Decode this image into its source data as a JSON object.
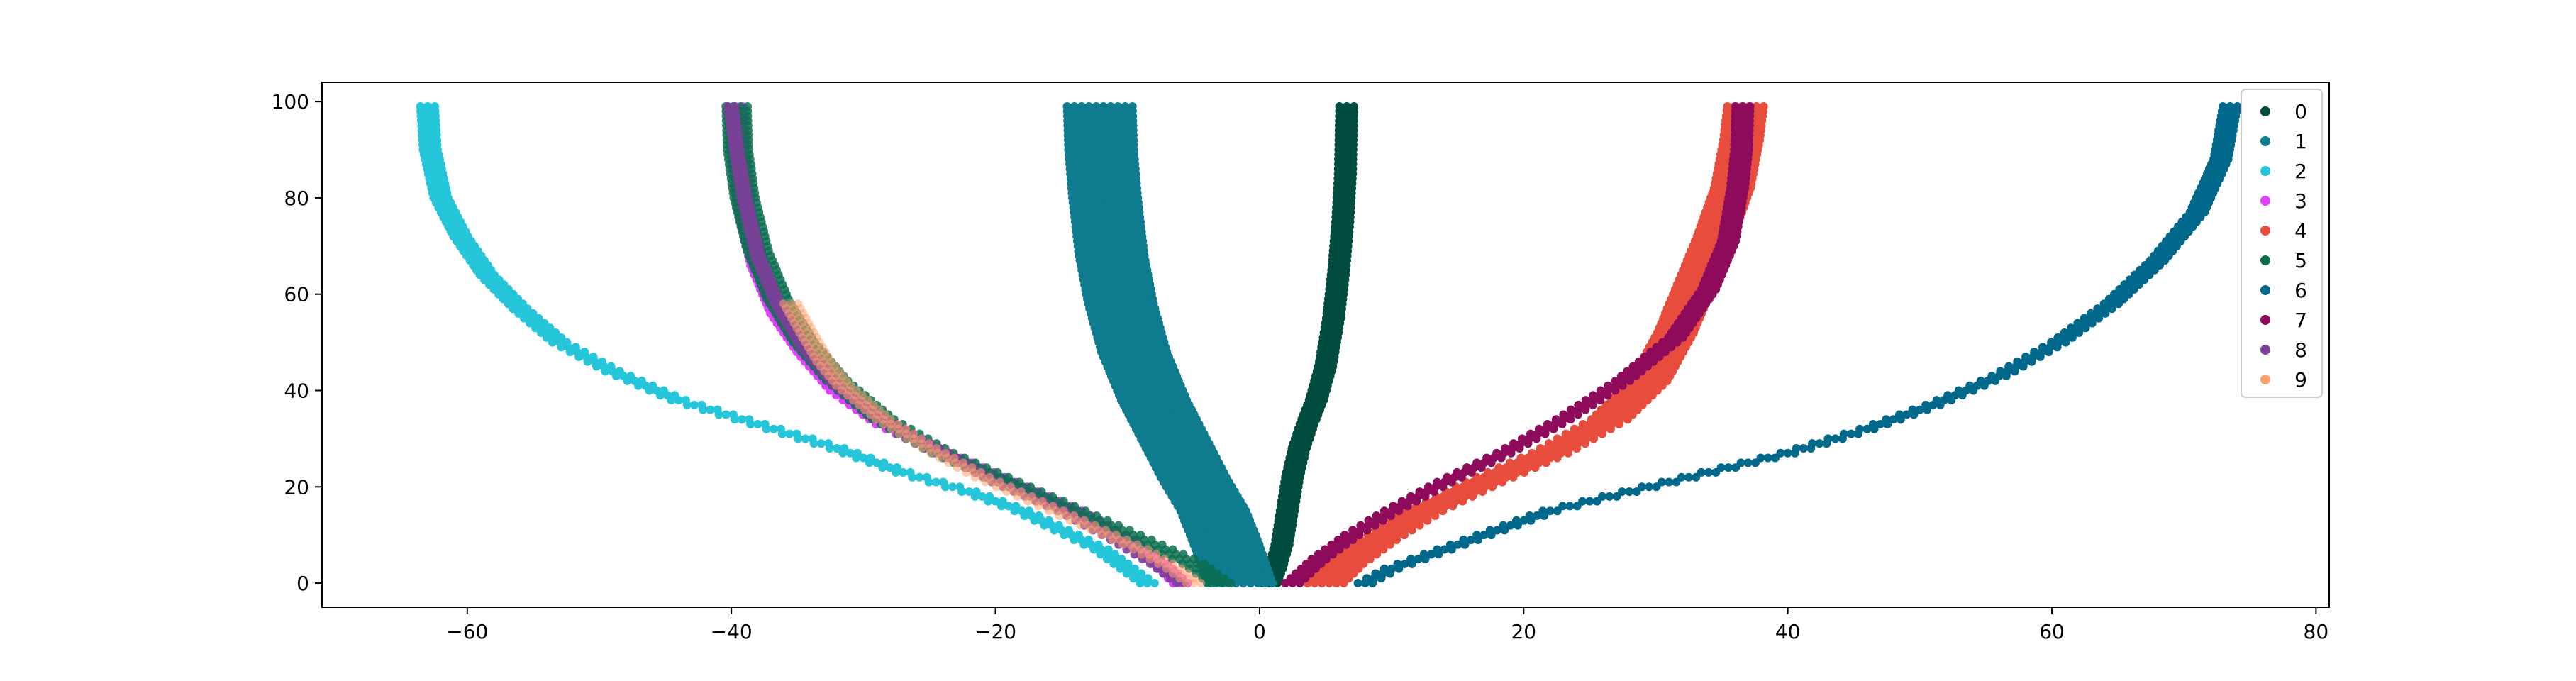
{
  "chart_data": {
    "type": "scatter",
    "title": "",
    "xlabel": "",
    "ylabel": "",
    "xlim": [
      -71,
      81
    ],
    "ylim": [
      -5,
      104
    ],
    "x_ticks": [
      -60,
      -40,
      -20,
      0,
      20,
      40,
      60,
      80
    ],
    "x_tick_labels": [
      "−60",
      "−40",
      "−20",
      "0",
      "20",
      "40",
      "60",
      "80"
    ],
    "y_ticks": [
      0,
      20,
      40,
      60,
      80,
      100
    ],
    "y_tick_labels": [
      "0",
      "20",
      "40",
      "60",
      "80",
      "100"
    ],
    "grid": false,
    "legend_position": "top-right",
    "series": [
      {
        "name": "0",
        "color": "#004d40",
        "alpha": 1.0,
        "band": 3,
        "points": [
          [
            0.8,
            0
          ],
          [
            1.2,
            3
          ],
          [
            1.7,
            8
          ],
          [
            2.1,
            15
          ],
          [
            2.5,
            22
          ],
          [
            3.0,
            28
          ],
          [
            3.6,
            33
          ],
          [
            4.3,
            38
          ],
          [
            5.0,
            45
          ],
          [
            5.6,
            55
          ],
          [
            6.0,
            65
          ],
          [
            6.3,
            75
          ],
          [
            6.5,
            85
          ],
          [
            6.6,
            99
          ]
        ]
      },
      {
        "name": "1",
        "color": "#0e7c8e",
        "alpha": 1.0,
        "band": 10,
        "points": [
          [
            -1.5,
            0
          ],
          [
            -2.5,
            8
          ],
          [
            -3.5,
            15
          ],
          [
            -5.0,
            22
          ],
          [
            -6.5,
            30
          ],
          [
            -8.0,
            38
          ],
          [
            -9.5,
            48
          ],
          [
            -10.5,
            58
          ],
          [
            -11.2,
            68
          ],
          [
            -11.7,
            80
          ],
          [
            -12.0,
            90
          ],
          [
            -12.1,
            99
          ]
        ]
      },
      {
        "name": "2",
        "color": "#26c6da",
        "alpha": 1.0,
        "band": 3,
        "points": [
          [
            -8.5,
            0
          ],
          [
            -10,
            3
          ],
          [
            -12,
            7
          ],
          [
            -15,
            11
          ],
          [
            -18,
            15
          ],
          [
            -22,
            19
          ],
          [
            -27,
            23
          ],
          [
            -32,
            28
          ],
          [
            -38,
            33
          ],
          [
            -44,
            38
          ],
          [
            -49,
            44
          ],
          [
            -53,
            50
          ],
          [
            -56,
            57
          ],
          [
            -58.5,
            64
          ],
          [
            -60.5,
            72
          ],
          [
            -62,
            80
          ],
          [
            -62.8,
            90
          ],
          [
            -63,
            99
          ]
        ]
      },
      {
        "name": "3",
        "color": "#e040fb",
        "alpha": 1.0,
        "band": 3,
        "points": [
          [
            -6,
            0
          ],
          [
            -7.5,
            4
          ],
          [
            -10,
            9
          ],
          [
            -14,
            15
          ],
          [
            -19,
            21
          ],
          [
            -24,
            27
          ],
          [
            -28.5,
            33
          ],
          [
            -32,
            40
          ],
          [
            -34.5,
            48
          ],
          [
            -36.5,
            56
          ],
          [
            -38,
            66
          ],
          [
            -39,
            78
          ],
          [
            -39.5,
            90
          ],
          [
            -39.7,
            99
          ]
        ]
      },
      {
        "name": "4",
        "color": "#e74c3c",
        "alpha": 1.0,
        "band": 6,
        "points": [
          [
            5.0,
            0
          ],
          [
            6.5,
            4
          ],
          [
            9,
            9
          ],
          [
            12.5,
            15
          ],
          [
            17,
            21
          ],
          [
            22,
            27
          ],
          [
            26.5,
            34
          ],
          [
            29.5,
            42
          ],
          [
            31.5,
            52
          ],
          [
            33,
            62
          ],
          [
            34.5,
            72
          ],
          [
            35.8,
            82
          ],
          [
            36.5,
            92
          ],
          [
            36.8,
            99
          ]
        ]
      },
      {
        "name": "5",
        "color": "#0b6e50",
        "alpha": 0.85,
        "band": 4,
        "points": [
          [
            -3,
            0
          ],
          [
            -5,
            4
          ],
          [
            -9,
            9
          ],
          [
            -14,
            15
          ],
          [
            -19,
            21
          ],
          [
            -24,
            27
          ],
          [
            -28.5,
            34
          ],
          [
            -32,
            42
          ],
          [
            -34.5,
            50
          ],
          [
            -36.5,
            59
          ],
          [
            -38,
            69
          ],
          [
            -39,
            80
          ],
          [
            -39.5,
            90
          ],
          [
            -39.6,
            99
          ]
        ]
      },
      {
        "name": "6",
        "color": "#00688b",
        "alpha": 1.0,
        "band": 3,
        "points": [
          [
            8,
            0
          ],
          [
            10,
            3
          ],
          [
            13,
            6
          ],
          [
            17,
            10
          ],
          [
            22,
            15
          ],
          [
            28,
            19
          ],
          [
            34,
            23
          ],
          [
            40,
            27
          ],
          [
            46,
            32
          ],
          [
            51,
            37
          ],
          [
            56,
            43
          ],
          [
            60.5,
            50
          ],
          [
            64.5,
            58
          ],
          [
            68,
            67
          ],
          [
            71,
            77
          ],
          [
            72.8,
            88
          ],
          [
            73.5,
            99
          ]
        ]
      },
      {
        "name": "7",
        "color": "#8e0b5c",
        "alpha": 1.0,
        "band": 3,
        "points": [
          [
            2.5,
            0
          ],
          [
            4.5,
            5
          ],
          [
            7,
            10
          ],
          [
            10,
            15
          ],
          [
            14,
            21
          ],
          [
            18.5,
            27
          ],
          [
            23,
            34
          ],
          [
            27.5,
            42
          ],
          [
            31.5,
            51
          ],
          [
            34,
            61
          ],
          [
            35.5,
            71
          ],
          [
            36.2,
            82
          ],
          [
            36.5,
            90
          ],
          [
            36.6,
            99
          ]
        ]
      },
      {
        "name": "8",
        "color": "#7b3f98",
        "alpha": 0.9,
        "band": 2,
        "points": [
          [
            -6,
            0
          ],
          [
            -8,
            4
          ],
          [
            -11,
            9
          ],
          [
            -15,
            15
          ],
          [
            -20,
            21
          ],
          [
            -24.5,
            28
          ],
          [
            -28.5,
            34
          ],
          [
            -32,
            41
          ],
          [
            -34.5,
            49
          ],
          [
            -36.5,
            58
          ],
          [
            -38,
            68
          ],
          [
            -39,
            80
          ],
          [
            -39.6,
            90
          ],
          [
            -40,
            99
          ]
        ]
      },
      {
        "name": "9",
        "color": "#ffa270",
        "alpha": 0.55,
        "band": 3,
        "points": [
          [
            -5,
            0
          ],
          [
            -6.5,
            3
          ],
          [
            -9,
            7
          ],
          [
            -13,
            12
          ],
          [
            -17,
            17
          ],
          [
            -21,
            22
          ],
          [
            -25,
            28
          ],
          [
            -28.5,
            34
          ],
          [
            -31.5,
            41
          ],
          [
            -33,
            46
          ],
          [
            -34.5,
            53
          ],
          [
            -35.5,
            58
          ]
        ]
      }
    ]
  }
}
